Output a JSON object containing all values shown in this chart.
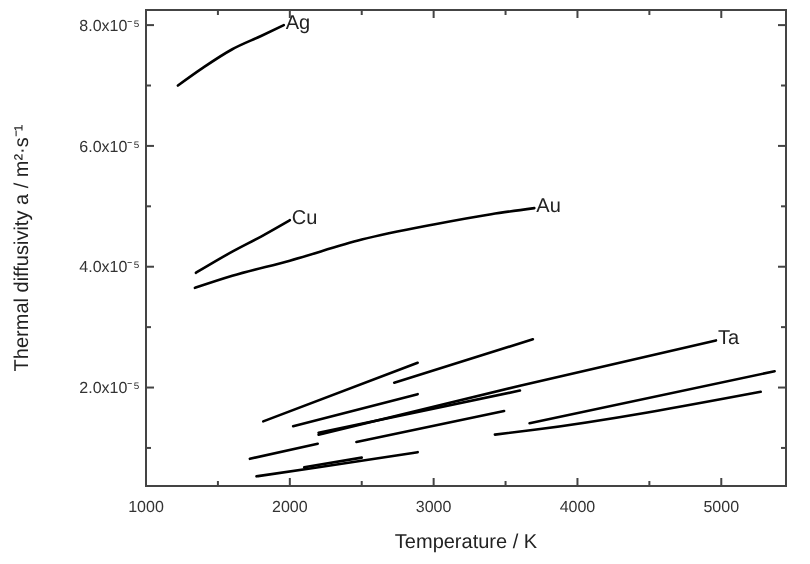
{
  "chart_data": {
    "type": "line",
    "xlabel": "Temperature / K",
    "ylabel": "Thermal diffusivity a / m²·s⁻¹",
    "xlim": [
      1000,
      5450
    ],
    "ylim": [
      3.7e-06,
      8.25e-05
    ],
    "xticks": [
      1000,
      {
        "value": 1500,
        "label": null
      },
      2000,
      {
        "value": 2500,
        "label": null
      },
      3000,
      {
        "value": 3500,
        "label": null
      },
      4000,
      {
        "value": 4500,
        "label": null
      },
      5000
    ],
    "yticks": [
      {
        "value": 1e-05,
        "label": null
      },
      {
        "value": 2e-05,
        "label": "2.0x10⁻⁵"
      },
      {
        "value": 3e-05,
        "label": null
      },
      {
        "value": 4e-05,
        "label": "4.0x10⁻⁵"
      },
      {
        "value": 5e-05,
        "label": null
      },
      {
        "value": 6e-05,
        "label": "6.0x10⁻⁵"
      },
      {
        "value": 7e-05,
        "label": null
      },
      {
        "value": 8e-05,
        "label": "8.0x10⁻⁵"
      }
    ],
    "grid": false,
    "line_style": "solid",
    "marker": "none",
    "series": [
      {
        "name": "Ag",
        "color": "#000000",
        "x": [
          1222,
          1400,
          1600,
          1800,
          1958
        ],
        "values": [
          7e-05,
          7.3e-05,
          7.6e-05,
          7.82e-05,
          8e-05
        ]
      },
      {
        "name": "Cu",
        "color": "#000000",
        "x": [
          1347,
          1600,
          1800,
          2000
        ],
        "values": [
          3.9e-05,
          4.25e-05,
          4.5e-05,
          4.77e-05
        ]
      },
      {
        "name": "Au",
        "color": "#000000",
        "x": [
          1340,
          1600,
          2000,
          2500,
          3000,
          3400,
          3700
        ],
        "values": [
          3.65e-05,
          3.85e-05,
          4.1e-05,
          4.45e-05,
          4.7e-05,
          4.87e-05,
          4.97e-05
        ]
      },
      {
        "name": "Ta",
        "color": "#000000",
        "x": [
          2200,
          3600,
          4963
        ],
        "values": [
          1.22e-05,
          2.03e-05,
          2.78e-05
        ]
      },
      {
        "color": "#000000",
        "x": [
          1815,
          2889
        ],
        "values": [
          1.44e-05,
          2.41e-05
        ]
      },
      {
        "color": "#000000",
        "x": [
          2726,
          3690
        ],
        "values": [
          2.08e-05,
          2.8e-05
        ]
      },
      {
        "color": "#000000",
        "x": [
          2023,
          2889
        ],
        "values": [
          1.36e-05,
          1.89e-05
        ]
      },
      {
        "color": "#000000",
        "x": [
          2200,
          3600
        ],
        "values": [
          1.25e-05,
          1.95e-05
        ]
      },
      {
        "color": "#000000",
        "x": [
          2463,
          3490
        ],
        "values": [
          1.1e-05,
          1.61e-05
        ]
      },
      {
        "color": "#000000",
        "x": [
          1722,
          2194
        ],
        "values": [
          8.2e-06,
          1.07e-05
        ]
      },
      {
        "color": "#000000",
        "x": [
          1768,
          2200,
          2889
        ],
        "values": [
          5.3e-06,
          6.8e-06,
          9.3e-06
        ]
      },
      {
        "color": "#000000",
        "x": [
          2100,
          2500
        ],
        "values": [
          6.8e-06,
          8.4e-06
        ]
      },
      {
        "color": "#000000",
        "x": [
          3667,
          5371
        ],
        "values": [
          1.41e-05,
          2.27e-05
        ]
      },
      {
        "color": "#000000",
        "x": [
          3426,
          3700,
          5274
        ],
        "values": [
          1.22e-05,
          1.3e-05,
          1.93e-05
        ]
      }
    ]
  }
}
